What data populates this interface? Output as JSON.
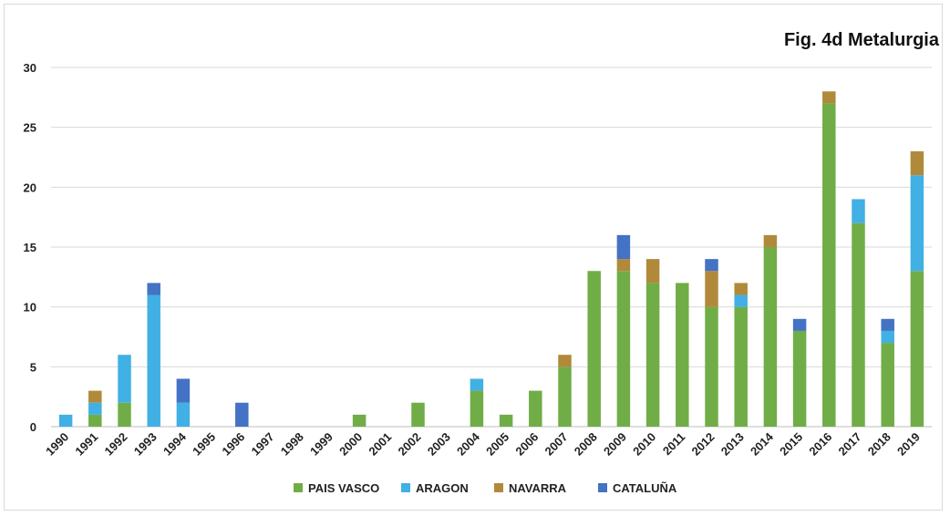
{
  "chart_data": {
    "type": "bar",
    "stacked": true,
    "title": "Fig. 4d Metalurgia",
    "xlabel": "",
    "ylabel": "",
    "ylim": [
      0,
      30
    ],
    "yticks": [
      0,
      5,
      10,
      15,
      20,
      25,
      30
    ],
    "grid": true,
    "legend_position": "bottom",
    "categories": [
      "1990",
      "1991",
      "1992",
      "1993",
      "1994",
      "1995",
      "1996",
      "1997",
      "1998",
      "1999",
      "2000",
      "2001",
      "2002",
      "2003",
      "2004",
      "2005",
      "2006",
      "2007",
      "2008",
      "2009",
      "2010",
      "2011",
      "2012",
      "2013",
      "2014",
      "2015",
      "2016",
      "2017",
      "2018",
      "2019"
    ],
    "series": [
      {
        "name": "PAIS VASCO",
        "color": "#70ad47",
        "values": [
          0,
          1,
          2,
          0,
          0,
          0,
          0,
          0,
          0,
          0,
          1,
          0,
          2,
          0,
          3,
          1,
          3,
          5,
          13,
          13,
          12,
          12,
          10,
          10,
          15,
          8,
          27,
          17,
          7,
          13
        ]
      },
      {
        "name": "ARAGON",
        "color": "#41b0e4",
        "values": [
          1,
          1,
          4,
          11,
          2,
          0,
          0,
          0,
          0,
          0,
          0,
          0,
          0,
          0,
          1,
          0,
          0,
          0,
          0,
          0,
          0,
          0,
          0,
          1,
          0,
          0,
          0,
          2,
          1,
          8
        ]
      },
      {
        "name": "NAVARRA",
        "color": "#b08a3a",
        "values": [
          0,
          1,
          0,
          0,
          0,
          0,
          0,
          0,
          0,
          0,
          0,
          0,
          0,
          0,
          0,
          0,
          0,
          1,
          0,
          1,
          2,
          0,
          3,
          1,
          1,
          0,
          1,
          0,
          0,
          2
        ]
      },
      {
        "name": "CATALUÑA",
        "color": "#4472c4",
        "values": [
          0,
          0,
          0,
          1,
          2,
          0,
          2,
          0,
          0,
          0,
          0,
          0,
          0,
          0,
          0,
          0,
          0,
          0,
          0,
          2,
          0,
          0,
          1,
          0,
          0,
          1,
          0,
          0,
          1,
          0
        ]
      }
    ]
  }
}
